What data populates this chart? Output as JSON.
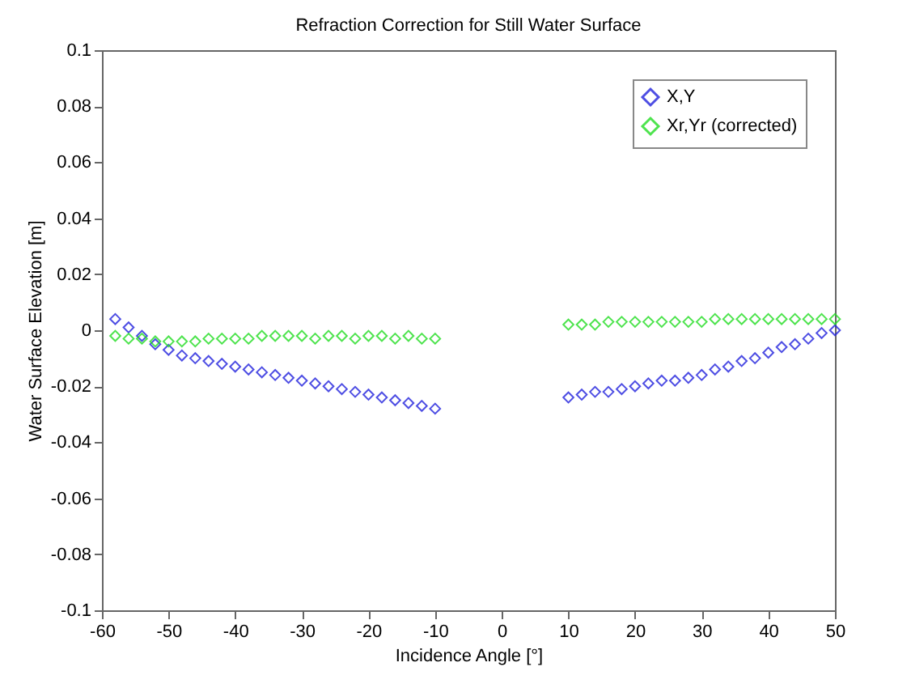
{
  "chart_data": {
    "type": "scatter",
    "title": "Refraction Correction for Still Water Surface",
    "xlabel": "Incidence Angle [°]",
    "ylabel": "Water Surface Elevation [m]",
    "xlim": [
      -60,
      50
    ],
    "xticks": [
      -60,
      -50,
      -40,
      -30,
      -20,
      -10,
      0,
      10,
      20,
      30,
      40,
      50
    ],
    "ylim": [
      -0.1,
      0.1
    ],
    "yticks": [
      -0.1,
      -0.08,
      -0.06,
      -0.04,
      -0.02,
      0,
      0.02,
      0.04,
      0.06,
      0.08,
      0.1
    ],
    "grid": false,
    "legend": "top right",
    "marker": "diamond",
    "series": [
      {
        "name": "X,Y",
        "color": "#2222dd",
        "x": [
          -58,
          -56,
          -54,
          -52,
          -50,
          -48,
          -46,
          -44,
          -42,
          -40,
          -38,
          -36,
          -34,
          -32,
          -30,
          -28,
          -26,
          -24,
          -22,
          -20,
          -18,
          -16,
          -14,
          -12,
          -10,
          10,
          12,
          14,
          16,
          18,
          20,
          22,
          24,
          26,
          28,
          30,
          32,
          34,
          36,
          38,
          40,
          42,
          44,
          46,
          48,
          50
        ],
        "values": [
          0.004,
          0.001,
          -0.002,
          -0.005,
          -0.007,
          -0.009,
          -0.01,
          -0.011,
          -0.012,
          -0.013,
          -0.014,
          -0.015,
          -0.016,
          -0.017,
          -0.018,
          -0.019,
          -0.02,
          -0.021,
          -0.022,
          -0.023,
          -0.024,
          -0.025,
          -0.026,
          -0.027,
          -0.028,
          -0.024,
          -0.023,
          -0.022,
          -0.022,
          -0.021,
          -0.02,
          -0.019,
          -0.018,
          -0.018,
          -0.017,
          -0.016,
          -0.014,
          -0.013,
          -0.011,
          -0.01,
          -0.008,
          -0.006,
          -0.005,
          -0.003,
          -0.001,
          0.0
        ]
      },
      {
        "name": "Xr,Yr (corrected)",
        "color": "#22dd22",
        "x": [
          -58,
          -56,
          -54,
          -52,
          -50,
          -48,
          -46,
          -44,
          -42,
          -40,
          -38,
          -36,
          -34,
          -32,
          -30,
          -28,
          -26,
          -24,
          -22,
          -20,
          -18,
          -16,
          -14,
          -12,
          -10,
          10,
          12,
          14,
          16,
          18,
          20,
          22,
          24,
          26,
          28,
          30,
          32,
          34,
          36,
          38,
          40,
          42,
          44,
          46,
          48,
          50
        ],
        "values": [
          -0.002,
          -0.003,
          -0.003,
          -0.004,
          -0.004,
          -0.004,
          -0.004,
          -0.003,
          -0.003,
          -0.003,
          -0.003,
          -0.002,
          -0.002,
          -0.002,
          -0.002,
          -0.003,
          -0.002,
          -0.002,
          -0.003,
          -0.002,
          -0.002,
          -0.003,
          -0.002,
          -0.003,
          -0.003,
          0.002,
          0.002,
          0.002,
          0.003,
          0.003,
          0.003,
          0.003,
          0.003,
          0.003,
          0.003,
          0.003,
          0.004,
          0.004,
          0.004,
          0.004,
          0.004,
          0.004,
          0.004,
          0.004,
          0.004,
          0.004
        ]
      }
    ]
  }
}
